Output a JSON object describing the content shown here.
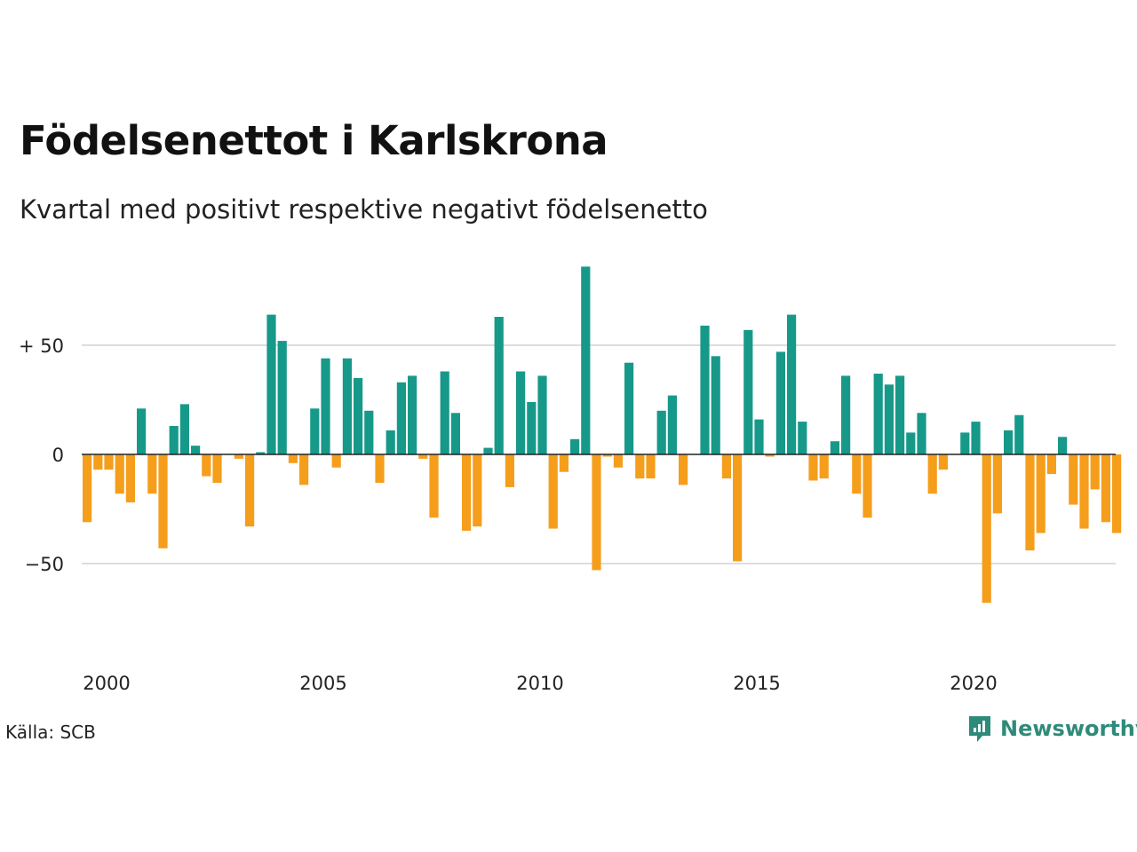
{
  "title": "Födelsenettot i Karlskrona",
  "subtitle": "Kvartal med positivt respektive negativt födelsenetto",
  "source": "Källa: SCB",
  "brand": {
    "name": "Newsworthy",
    "icon": "newsworthy-logo-icon"
  },
  "colors": {
    "positive": "#17998a",
    "negative": "#f59e1c",
    "grid": "#dddddd",
    "zero": "#222222"
  },
  "chart_data": {
    "type": "bar",
    "x_start": "2000Q1",
    "x_ticks": [
      "2000",
      "2005",
      "2010",
      "2015",
      "2020"
    ],
    "y_ticks": [
      {
        "value": 50,
        "label": "+ 50"
      },
      {
        "value": 0,
        "label": "0"
      },
      {
        "value": -50,
        "label": "−50"
      }
    ],
    "ylim": [
      -85,
      90
    ],
    "values": [
      -31,
      -7,
      -7,
      -18,
      -22,
      21,
      -18,
      -43,
      13,
      23,
      4,
      -10,
      -13,
      0,
      -2,
      -33,
      1,
      64,
      52,
      -4,
      -14,
      21,
      44,
      -6,
      44,
      35,
      20,
      -13,
      11,
      33,
      36,
      -2,
      -29,
      38,
      19,
      -35,
      -33,
      3,
      63,
      -15,
      38,
      24,
      36,
      -34,
      -8,
      7,
      86,
      -53,
      -1,
      -6,
      42,
      -11,
      -11,
      20,
      27,
      -14,
      0,
      59,
      45,
      -11,
      -49,
      57,
      16,
      -1,
      47,
      64,
      15,
      -12,
      -11,
      6,
      36,
      -18,
      -29,
      37,
      32,
      36,
      10,
      19,
      -18,
      -7,
      0,
      10,
      15,
      -68,
      -27,
      11,
      18,
      -44,
      -36,
      -9,
      8,
      -23,
      -34,
      -16,
      -31,
      -36
    ]
  }
}
